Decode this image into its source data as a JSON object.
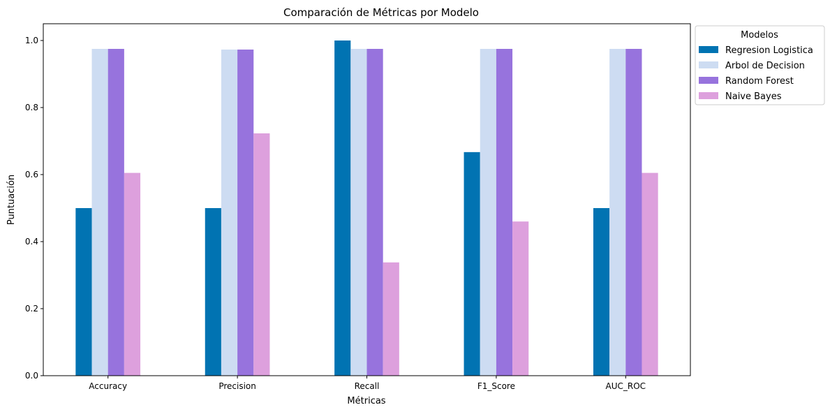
{
  "chart_data": {
    "type": "bar",
    "title": "Comparación de Métricas por Modelo",
    "xlabel": "Métricas",
    "ylabel": "Puntuación",
    "categories": [
      "Accuracy",
      "Precision",
      "Recall",
      "F1_Score",
      "AUC_ROC"
    ],
    "ylim": [
      0,
      1.05
    ],
    "yticks": [
      "0.0",
      "0.2",
      "0.4",
      "0.6",
      "0.8",
      "1.0"
    ],
    "grid": false,
    "legend": {
      "title": "Modelos",
      "placement": "outside-top-right"
    },
    "series": [
      {
        "name": "Regresion Logistica",
        "color": "#0173b2",
        "values": [
          0.5,
          0.5,
          1.0,
          0.667,
          0.5
        ]
      },
      {
        "name": "Arbol de Decision",
        "color": "#cddcf2",
        "values": [
          0.975,
          0.973,
          0.975,
          0.975,
          0.975
        ]
      },
      {
        "name": "Random Forest",
        "color": "#9773dd",
        "values": [
          0.975,
          0.973,
          0.975,
          0.975,
          0.975
        ]
      },
      {
        "name": "Naive Bayes",
        "color": "#dda0dd",
        "values": [
          0.605,
          0.723,
          0.338,
          0.46,
          0.605
        ]
      }
    ]
  }
}
